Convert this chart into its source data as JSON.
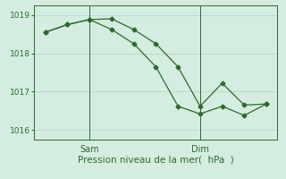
{
  "series1_x": [
    0,
    1,
    2,
    3,
    4,
    5,
    6,
    7,
    8,
    9,
    10
  ],
  "series1_y": [
    1018.55,
    1018.75,
    1018.88,
    1018.9,
    1018.62,
    1018.25,
    1017.65,
    1016.62,
    1017.22,
    1016.65,
    1016.68
  ],
  "series2_x": [
    0,
    1,
    2,
    3,
    4,
    5,
    6,
    7,
    8,
    9,
    10
  ],
  "series2_y": [
    1018.55,
    1018.75,
    1018.88,
    1018.62,
    1018.25,
    1017.65,
    1016.62,
    1016.42,
    1016.62,
    1016.38,
    1016.68
  ],
  "line_color": "#2d6a2d",
  "bg_color": "#d4ede0",
  "grid_color": "#b0d4c0",
  "ylim": [
    1015.75,
    1019.25
  ],
  "yticks": [
    1016,
    1017,
    1018,
    1019
  ],
  "xlim": [
    -0.5,
    10.5
  ],
  "sam_x": 2.0,
  "dim_x": 7.0,
  "xlabel": "Pression niveau de la mer(  hPa  )",
  "ytick_fontsize": 6.5,
  "xtick_fontsize": 7.0,
  "xlabel_fontsize": 7.5
}
